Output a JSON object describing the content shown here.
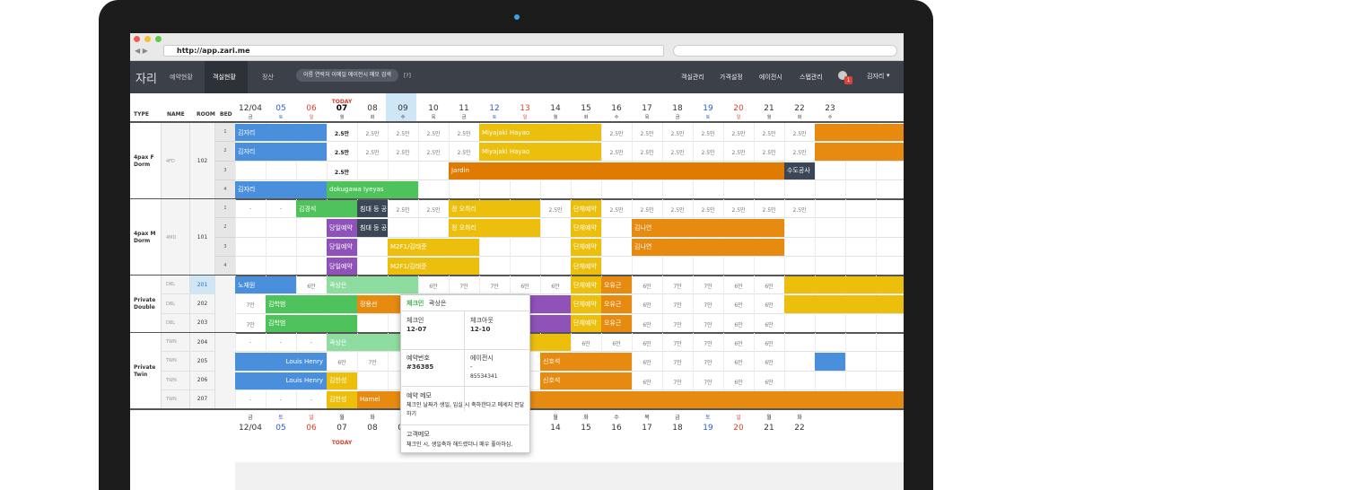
{
  "browser": {
    "url": "http://app.zari.me"
  },
  "nav": {
    "logo": "자리",
    "menu": [
      "예약현황",
      "객실현황",
      "정산"
    ],
    "search_placeholder": "이름 연락처 이메일 에이전시 메모 검색",
    "help": "[?]",
    "right_menu": [
      "객실관리",
      "가격설정",
      "에이전시",
      "스텝관리"
    ],
    "notification_count": 1,
    "user": "김자리"
  },
  "header": {
    "columns": [
      "TYPE",
      "NAME",
      "ROOM",
      "BED"
    ],
    "today": "TODAY"
  },
  "dates": [
    {
      "date": "12/04",
      "weekday": "금"
    },
    {
      "date": "05",
      "weekday": "토"
    },
    {
      "date": "06",
      "weekday": "일"
    },
    {
      "date": "07",
      "weekday": "월"
    },
    {
      "date": "08",
      "weekday": "화"
    },
    {
      "date": "09",
      "weekday": "수"
    },
    {
      "date": "10",
      "weekday": "목"
    },
    {
      "date": "11",
      "weekday": "금"
    },
    {
      "date": "12",
      "weekday": "토"
    },
    {
      "date": "13",
      "weekday": "일"
    },
    {
      "date": "14",
      "weekday": "월"
    },
    {
      "date": "15",
      "weekday": "화"
    },
    {
      "date": "16",
      "weekday": "수"
    },
    {
      "date": "17",
      "weekday": "목"
    },
    {
      "date": "18",
      "weekday": "금"
    },
    {
      "date": "19",
      "weekday": "토"
    },
    {
      "date": "20",
      "weekday": "일"
    },
    {
      "date": "21",
      "weekday": "월"
    },
    {
      "date": "22",
      "weekday": "화"
    },
    {
      "date": "23",
      "weekday": "수"
    }
  ],
  "groups": [
    {
      "type": "4pax F Dorm",
      "name": "4FD",
      "room": "102",
      "rows": [
        {
          "bed": "1",
          "bookings": [
            "김자리",
            "Miyajaki Hayao"
          ],
          "prices": [
            "2.5만",
            "2.5만",
            "2.5만",
            "2.5만",
            "2.5만",
            "2.5만",
            "2.5만",
            "2.5만",
            "2.5만",
            "2.5만",
            "2.5만",
            "2.5만"
          ]
        },
        {
          "bed": "2",
          "bookings": [
            "김자리",
            "Miyajaki Hayao"
          ],
          "prices": [
            "2.5만",
            "2.5만",
            "2.5만",
            "2.5만",
            "2.5만",
            "2.5만",
            "2.5만",
            "2.5만",
            "2.5만",
            "2.5만",
            "2.5만",
            "2.5만"
          ]
        },
        {
          "bed": "3",
          "bookings": [
            "Jardin",
            "수도공사"
          ],
          "prices": [
            "2.5만"
          ]
        },
        {
          "bed": "4",
          "bookings": [
            "김자리",
            "dokugawa Iyeyas"
          ],
          "prices": []
        }
      ]
    },
    {
      "type": "4pax M Dorm",
      "name": "4MD",
      "room": "101",
      "rows": [
        {
          "bed": "1",
          "bookings": [
            "김경석",
            "침대 등 공",
            "정 오하리",
            "단체예약"
          ],
          "prices": [
            "-",
            "-",
            "2.5만",
            "2.5만",
            "2.5만",
            "2.5만",
            "2.5만",
            "2.5만",
            "2.5만",
            "2.5만",
            "2.5만",
            "2.5만"
          ]
        },
        {
          "bed": "2",
          "bookings": [
            "당일예약",
            "침대 등 공",
            "정 오하리",
            "단체예약",
            "김나연"
          ],
          "prices": []
        },
        {
          "bed": "3",
          "bookings": [
            "당일예약",
            "M2F1/김태준",
            "단체예약",
            "김나연"
          ],
          "prices": []
        },
        {
          "bed": "4",
          "bookings": [
            "당일예약",
            "M2F1/김태준",
            "단체예약"
          ],
          "prices": []
        }
      ]
    },
    {
      "type": "Private Double",
      "rows": [
        {
          "name": "DBL",
          "room": "201",
          "bookings": [
            "노재원",
            "곽상은",
            "단체예약",
            "오유근"
          ],
          "prices": [
            "6만",
            "6만",
            "7만",
            "7만",
            "6만",
            "6만",
            "6만",
            "7만",
            "7만",
            "6만",
            "6만"
          ]
        },
        {
          "name": "DBL",
          "room": "202",
          "bookings": [
            "김학범",
            "정용선",
            "단체예약",
            "오유근"
          ],
          "prices": [
            "7만",
            "6만",
            "7만",
            "7만",
            "6만",
            "6만"
          ]
        },
        {
          "name": "DBL",
          "room": "203",
          "bookings": [
            "김학범",
            "단체예약",
            "오유근"
          ],
          "prices": [
            "7만",
            "6만",
            "7만",
            "7만",
            "6만",
            "6만"
          ]
        }
      ]
    },
    {
      "type": "Private Twin",
      "rows": [
        {
          "name": "TWN",
          "room": "204",
          "bookings": [
            "곽상은"
          ],
          "prices": [
            "-",
            "-",
            "-",
            "6만",
            "6만",
            "6만",
            "7만",
            "7만",
            "6만",
            "6만"
          ]
        },
        {
          "name": "TWN",
          "room": "205",
          "bookings": [
            "Louis Henry",
            "신호석"
          ],
          "prices": [
            "6만",
            "7만",
            "6만",
            "7만",
            "7만",
            "6만",
            "6만"
          ]
        },
        {
          "name": "TWN",
          "room": "206",
          "bookings": [
            "Louis Henry",
            "김한성",
            "신호석"
          ],
          "prices": [
            "6만",
            "7만",
            "7만",
            "6만",
            "6만"
          ]
        },
        {
          "name": "TWN",
          "room": "207",
          "bookings": [
            "김한성",
            "Hamel"
          ],
          "prices": [
            "-",
            "-",
            "-"
          ]
        }
      ]
    }
  ],
  "popover": {
    "status": "체크인",
    "guest": "곽상은",
    "checkin_label": "체크인",
    "checkin": "12-07",
    "checkout_label": "체크아웃",
    "checkout": "12-10",
    "booking_no_label": "예약번호",
    "booking_no": "#36385",
    "agency_label": "에이전시",
    "agency": "-",
    "agency_no": "85534341",
    "memo_label": "예약 메모",
    "memo": "체크인 날짜가 생일, 입실 시 축하한다고 메세지 전달하기",
    "customer_memo_label": "고객메모",
    "customer_memo": "체크인 시, 생일축하 해드렸더니 매우 좋아하심."
  }
}
